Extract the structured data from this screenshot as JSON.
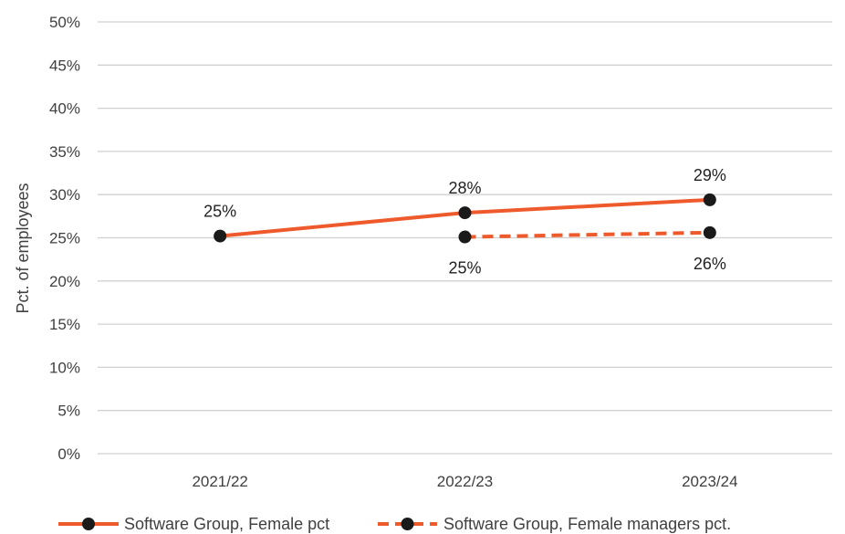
{
  "chart_data": {
    "type": "line",
    "categories": [
      "2021/22",
      "2022/23",
      "2023/24"
    ],
    "title": "",
    "xlabel": "",
    "ylabel": "Pct. of employees",
    "ylim": [
      0,
      50
    ],
    "yticks": [
      0,
      5,
      10,
      15,
      20,
      25,
      30,
      35,
      40,
      45,
      50
    ],
    "ytick_labels": [
      "0%",
      "5%",
      "10%",
      "15%",
      "20%",
      "25%",
      "30%",
      "35%",
      "40%",
      "45%",
      "50%"
    ],
    "grid": true,
    "legend_position": "bottom",
    "series": [
      {
        "name": "Software Group, Female pct",
        "values": [
          25.2,
          27.9,
          29.4
        ],
        "labels": [
          "25%",
          "28%",
          "29%"
        ],
        "label_position": "above",
        "line_style": "solid",
        "color": "#EE5A2B",
        "marker_color": "#1A1A1A"
      },
      {
        "name": "Software Group, Female managers pct.",
        "values": [
          null,
          25.1,
          25.6
        ],
        "labels": [
          null,
          "25%",
          "26%"
        ],
        "label_position": "below",
        "line_style": "dashed",
        "color": "#EE5A2B",
        "marker_color": "#1A1A1A"
      }
    ]
  }
}
